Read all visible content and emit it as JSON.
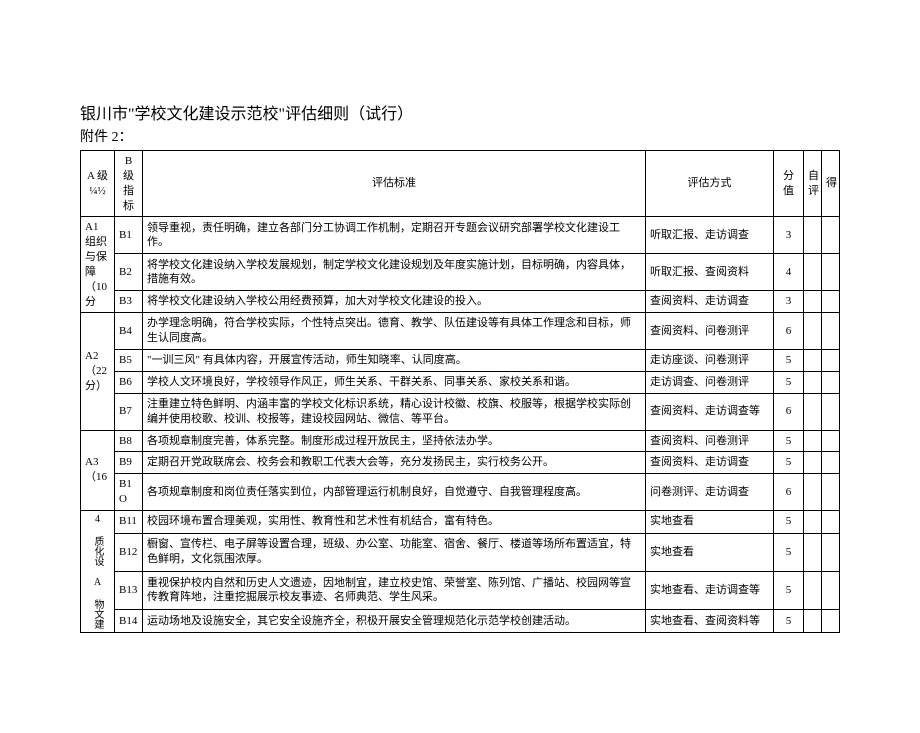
{
  "title": "银川市\"学校文化建设示范校\"评估细则（试行）",
  "subtitle": "附件 2：",
  "header": {
    "colA": "A 级\n¼½",
    "colB": "B 级\n指标",
    "standard": "评估标准",
    "method": "评估方式",
    "score": "分值",
    "self": "自评",
    "de": "得"
  },
  "rowgroups": [
    {
      "a_label": "A1 组织与保障\n（10分",
      "rows": [
        {
          "b": "B1",
          "std": "领导重视，责任明确，建立各部门分工协调工作机制，定期召开专题会议研究部署学校文化建设工作。",
          "method": "听取汇报、走访调查",
          "score": "3"
        },
        {
          "b": "B2",
          "std": "将学校文化建设纳入学校发展规划，制定学校文化建设规划及年度实施计划，目标明确，内容具体，措施有效。",
          "method": "听取汇报、查阅资料",
          "score": "4"
        },
        {
          "b": "B3",
          "std": "将学校文化建设纳入学校公用经费预算，加大对学校文化建设的投入。",
          "method": "查阅资料、走访调查",
          "score": "3"
        }
      ]
    },
    {
      "a_label": "A2\n\n（22分）",
      "rows": [
        {
          "b": "B4",
          "std": "办学理念明确，符合学校实际，个性特点突出。德育、教学、队伍建设等有具体工作理念和目标，师生认同度高。",
          "method": "查阅资料、问卷测评",
          "score": "6"
        },
        {
          "b": "B5",
          "std": "\"一训三风\" 有具体内容，开展宣传活动，师生知晓率、认同度高。",
          "method": "走访座谈、问卷测评",
          "score": "5"
        },
        {
          "b": "B6",
          "std": "学校人文环境良好，学校领导作风正，师生关系、干群关系、同事关系、家校关系和谐。",
          "method": "走访调查、问卷测评",
          "score": "5"
        },
        {
          "b": "B7",
          "std": "注重建立特色鲜明、内涵丰富的学校文化标识系统，精心设计校徽、校旗、校服等，根据学校实际创编并使用校歌、校训、校报等，建设校园网站、微信、等平台。",
          "method": "查阅资料、走访调查等",
          "score": "6"
        }
      ]
    },
    {
      "a_label": "A3\n\n（16",
      "rows": [
        {
          "b": "B8",
          "std": "各项规章制度完善，体系完整。制度形成过程开放民主，坚持依法办学。",
          "method": "查阅资料、问卷测评",
          "score": "5"
        },
        {
          "b": "B9",
          "std": "定期召开党政联席会、校务会和教职工代表大会等，充分发扬民主，实行校务公开。",
          "method": "查阅资料、走访调查",
          "score": "5"
        },
        {
          "b": "B1O",
          "std": "各项规章制度和岗位责任落实到位，内部管理运行机制良好，自觉遵守、自我管理程度高。",
          "method": "问卷测评、走访调查",
          "score": "6"
        }
      ]
    },
    {
      "a_label": "4 质化设 A 物文建",
      "vertical": true,
      "rows": [
        {
          "b": "B11",
          "std": "校园环境布置合理美观，实用性、教育性和艺术性有机结合，富有特色。",
          "method": "实地查看",
          "score": "5"
        },
        {
          "b": "B12",
          "std": "橱窗、宣传栏、电子屏等设置合理，班级、办公室、功能室、宿舍、餐厅、楼道等场所布置适宜，特色鲜明，文化氛围浓厚。",
          "method": "实地查看",
          "score": "5"
        },
        {
          "b": "B13",
          "std": "重视保护校内自然和历史人文遗迹，因地制宜，建立校史馆、荣誉室、陈列馆、广播站、校园网等宣传教育阵地，注重挖掘展示校友事迹、名师典范、学生风采。",
          "method": "实地查看、走访调查等",
          "score": "5"
        },
        {
          "b": "B14",
          "std": "运动场地及设施安全，其它安全设施齐全，积极开展安全管理规范化示范学校创建活动。",
          "method": "实地查看、查阅资料等",
          "score": "5"
        }
      ]
    }
  ]
}
